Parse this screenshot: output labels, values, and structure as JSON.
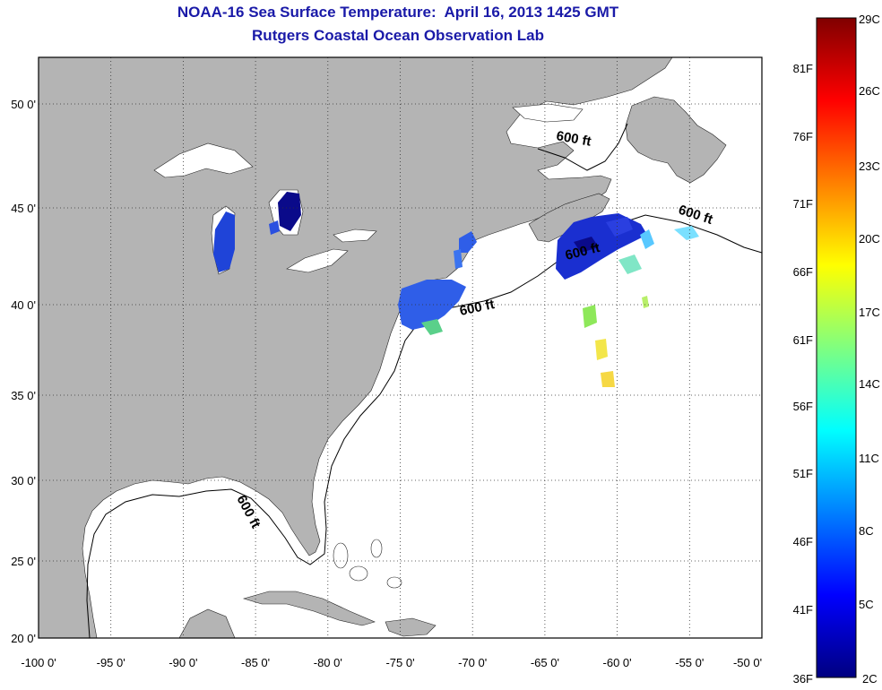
{
  "title": {
    "line1": "NOAA-16 Sea Surface Temperature:  April 16, 2013 1425 GMT",
    "line2": "Rutgers Coastal Ocean Observation Lab"
  },
  "map": {
    "lon_range": [
      -100,
      -50
    ],
    "lat_range": [
      20,
      52.5
    ],
    "lon_ticks": [
      "-100 0'",
      "-95 0'",
      "-90 0'",
      "-85 0'",
      "-80 0'",
      "-75 0'",
      "-70 0'",
      "-65 0'",
      "-60 0'",
      "-55 0'",
      "-50 0'"
    ],
    "lat_ticks": [
      "20 0'",
      "25 0'",
      "30 0'",
      "35 0'",
      "40 0'",
      "45 0'",
      "50 0'"
    ],
    "grid": "dotted",
    "land_color": "#b4b4b4",
    "water_color": "#ffffff",
    "depth_contour_label": "600 ft"
  },
  "colorbar": {
    "range_c": [
      2,
      29
    ],
    "celsius_labels": [
      "29C",
      "26C",
      "23C",
      "20C",
      "17C",
      "14C",
      "11C",
      "8C",
      "5C",
      "2C"
    ],
    "fahrenheit_labels": [
      "81F",
      "76F",
      "71F",
      "66F",
      "61F",
      "56F",
      "51F",
      "46F",
      "41F",
      "36F"
    ],
    "colormap": "jet"
  }
}
